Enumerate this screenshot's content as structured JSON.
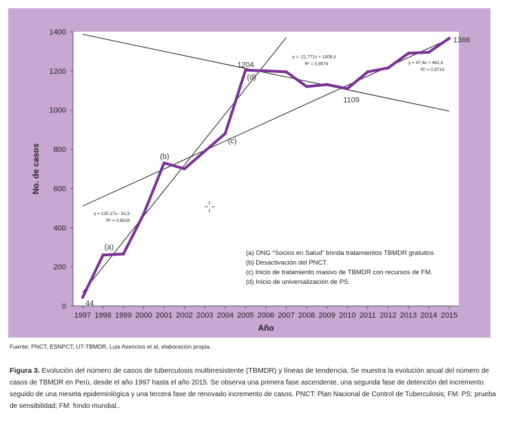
{
  "chart_data": {
    "type": "line",
    "x": [
      "1997",
      "1998",
      "1999",
      "2000",
      "2001",
      "2002",
      "2003",
      "2004",
      "2005",
      "2006",
      "2007",
      "2008",
      "2009",
      "2010",
      "2011",
      "2012",
      "2013",
      "2014",
      "2015"
    ],
    "series": [
      {
        "values": [
          44,
          260,
          265,
          470,
          730,
          700,
          790,
          880,
          1204,
          1200,
          1195,
          1120,
          1130,
          1109,
          1195,
          1215,
          1290,
          1295,
          1366
        ]
      }
    ],
    "trendlines": [
      {
        "equation": "y = 130,17x - 61,5",
        "r2": "R² = 0,9528",
        "from": [
          0,
          68.67
        ],
        "to": [
          10,
          1370.37
        ]
      },
      {
        "equation": "y = -21,771x + 1408,4",
        "r2": "R² = 0,8574",
        "from": [
          0,
          1386.6
        ],
        "to": [
          18,
          994.7
        ]
      },
      {
        "equation": "y = 47,4x + 462,4",
        "r2": "R² = 0,9718",
        "from": [
          0,
          509.8
        ],
        "to": [
          18,
          1363.0
        ]
      }
    ],
    "point_labels": [
      {
        "index": 0,
        "text": "44"
      },
      {
        "index": 8,
        "text": "1204"
      },
      {
        "index": 13,
        "text": "1109"
      },
      {
        "index": 18,
        "text": "1366"
      }
    ],
    "annotations": [
      {
        "index": 1,
        "text": "(a)"
      },
      {
        "index": 4,
        "text": "(b)"
      },
      {
        "index": 7,
        "text": "(c)"
      },
      {
        "index": 8,
        "text": "(d)"
      }
    ],
    "legend_notes": [
      "(a) ONG “Socios en Salud” brinda tratamientos TBMDR gratuitos",
      "(b) Desactivación del PNCT.",
      "(c) Inicio de tratamiento masivo de TBMDR con recursos de FM.",
      "(d) Inicio de universalización de PS."
    ],
    "xlabel": "Año",
    "ylabel": "No. de casos",
    "ylim": [
      0,
      1400
    ],
    "yticks": [
      0,
      200,
      400,
      600,
      800,
      1000,
      1200,
      1400
    ],
    "grid": false,
    "colors": {
      "series": "#7b3196",
      "trend": "#1a1a1a",
      "background": "#c8a8d3",
      "plot_area": "#ffffff"
    }
  },
  "source_note": "Fuente: PNCT, ESNPCT, UT-TBMDR, Luis Asencios et al, elaboración propia.",
  "caption": {
    "label": "Figura 3.",
    "title": "Evolución del número de casos de tuberculosis multirresistente (TBMDR) y líneas de tendencia.",
    "body": "Se muestra la evolución anual del número de casos de TBMDR en Perú, desde el año 1997 hasta el año 2015. Se observa una primera fase ascendente, una segunda fase de detención del incremento seguido de una meseta epidemiológica y una tercera fase de renovado incremento de casos. PNCT: Plan Nacional de Control de Tuberculosis; FM:  PS: prueba de sensibilidad; FM: fondo mundial.."
  }
}
